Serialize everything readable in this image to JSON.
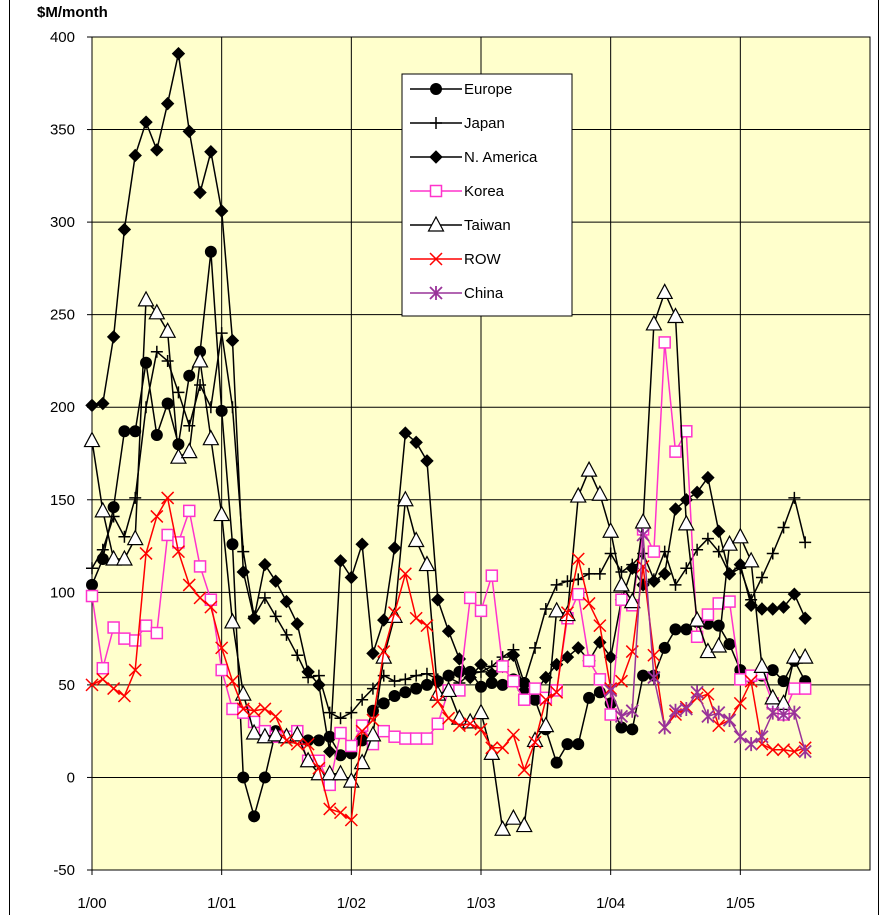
{
  "chart_data": {
    "type": "line",
    "ylabel_top": "$M/month",
    "xlim": [
      0,
      72
    ],
    "ylim": [
      -50,
      400
    ],
    "y_ticks": [
      -50,
      0,
      50,
      100,
      150,
      200,
      250,
      300,
      350,
      400
    ],
    "x_ticks": [
      {
        "pos": 0,
        "label": "1/00"
      },
      {
        "pos": 12,
        "label": "1/01"
      },
      {
        "pos": 24,
        "label": "1/02"
      },
      {
        "pos": 36,
        "label": "1/03"
      },
      {
        "pos": 48,
        "label": "1/04"
      },
      {
        "pos": 60,
        "label": "1/05"
      }
    ],
    "plot_bg": "#FFFFCC",
    "grid": true,
    "legend_position": "top-center",
    "series": [
      {
        "name": "Europe",
        "color": "#000000",
        "marker": "circle",
        "x": [
          0,
          1,
          2,
          3,
          4,
          5,
          6,
          7,
          8,
          9,
          10,
          11,
          12,
          13,
          14,
          15,
          16,
          17,
          18,
          19,
          20,
          21,
          22,
          23,
          24,
          25,
          26,
          27,
          28,
          29,
          30,
          31,
          32,
          33,
          34,
          35,
          36,
          37,
          38,
          39,
          40,
          41,
          42,
          43,
          44,
          45,
          46,
          47,
          48,
          49,
          50,
          51,
          52,
          53,
          54,
          55,
          56,
          57,
          58,
          59,
          60,
          61,
          62,
          63,
          64,
          65,
          66
        ],
        "y": [
          104,
          118,
          146,
          187,
          187,
          224,
          185,
          202,
          180,
          217,
          230,
          284,
          198,
          126,
          0,
          -21,
          0,
          25,
          22,
          23,
          20,
          20,
          22,
          12,
          13,
          20,
          36,
          40,
          44,
          46,
          48,
          50,
          52,
          55,
          57,
          57,
          49,
          51,
          50,
          53,
          51,
          42,
          26,
          8,
          18,
          18,
          43,
          46,
          40,
          27,
          26,
          55,
          55,
          70,
          80,
          80,
          84,
          83,
          82,
          72,
          58,
          54,
          55,
          58,
          52,
          63,
          52
        ]
      },
      {
        "name": "Japan",
        "color": "#000000",
        "marker": "plus",
        "x": [
          0,
          1,
          2,
          3,
          4,
          5,
          6,
          7,
          8,
          9,
          10,
          11,
          12,
          13,
          14,
          15,
          16,
          17,
          18,
          19,
          20,
          21,
          22,
          23,
          24,
          25,
          26,
          27,
          28,
          29,
          30,
          31,
          32,
          33,
          34,
          35,
          36,
          37,
          38,
          39,
          40,
          41,
          42,
          43,
          44,
          45,
          46,
          47,
          48,
          49,
          50,
          51,
          52,
          53,
          54,
          55,
          56,
          57,
          58,
          59,
          60,
          61,
          62,
          63,
          64,
          65,
          66
        ],
        "y": [
          113,
          123,
          141,
          130,
          151,
          200,
          230,
          225,
          208,
          190,
          212,
          200,
          240,
          200,
          122,
          87,
          97,
          87,
          77,
          66,
          54,
          55,
          35,
          32,
          35,
          42,
          48,
          55,
          52,
          53,
          55,
          56,
          53,
          54,
          51,
          56,
          57,
          60,
          65,
          69,
          51,
          70,
          91,
          104,
          106,
          107,
          110,
          110,
          121,
          111,
          115,
          121,
          107,
          122,
          104,
          113,
          123,
          129,
          122,
          110,
          113,
          96,
          108,
          121,
          135,
          151,
          127
        ]
      },
      {
        "name": "N. America",
        "color": "#000000",
        "marker": "diamond",
        "x": [
          0,
          1,
          2,
          3,
          4,
          5,
          6,
          7,
          8,
          9,
          10,
          11,
          12,
          13,
          14,
          15,
          16,
          17,
          18,
          19,
          20,
          21,
          22,
          23,
          24,
          25,
          26,
          27,
          28,
          29,
          30,
          31,
          32,
          33,
          34,
          35,
          36,
          37,
          38,
          39,
          40,
          41,
          42,
          43,
          44,
          45,
          46,
          47,
          48,
          49,
          50,
          51,
          52,
          53,
          54,
          55,
          56,
          57,
          58,
          59,
          60,
          61,
          62,
          63,
          64,
          65,
          66
        ],
        "y": [
          201,
          202,
          238,
          296,
          336,
          354,
          339,
          364,
          391,
          349,
          316,
          338,
          306,
          236,
          111,
          86,
          115,
          106,
          95,
          83,
          57,
          50,
          14,
          117,
          108,
          126,
          67,
          85,
          124,
          186,
          181,
          171,
          96,
          79,
          64,
          54,
          61,
          56,
          60,
          66,
          47,
          46,
          54,
          61,
          65,
          70,
          63,
          73,
          65,
          96,
          113,
          104,
          106,
          110,
          145,
          150,
          154,
          162,
          133,
          110,
          115,
          93,
          91,
          91,
          92,
          99,
          86
        ]
      },
      {
        "name": "Korea",
        "color": "#FF33CC",
        "marker": "square-open",
        "x": [
          0,
          1,
          2,
          3,
          4,
          5,
          6,
          7,
          8,
          9,
          10,
          11,
          12,
          13,
          14,
          15,
          16,
          17,
          18,
          19,
          20,
          21,
          22,
          23,
          24,
          25,
          26,
          27,
          28,
          29,
          30,
          31,
          32,
          33,
          34,
          35,
          36,
          37,
          38,
          39,
          40,
          41,
          42,
          43,
          44,
          45,
          46,
          47,
          48,
          49,
          50,
          51,
          52,
          53,
          54,
          55,
          56,
          57,
          58,
          59,
          60,
          61,
          62,
          63,
          64,
          65,
          66
        ],
        "y": [
          98,
          59,
          81,
          75,
          74,
          82,
          78,
          131,
          127,
          144,
          114,
          96,
          58,
          37,
          35,
          30,
          25,
          22,
          22,
          25,
          9,
          9,
          -4,
          24,
          17,
          28,
          18,
          25,
          22,
          21,
          21,
          21,
          29,
          47,
          47,
          97,
          90,
          109,
          60,
          52,
          42,
          48,
          43,
          47,
          86,
          99,
          63,
          53,
          34,
          96,
          93,
          134,
          122,
          235,
          176,
          187,
          76,
          88,
          94,
          95,
          53,
          55,
          56,
          40,
          34,
          48,
          48
        ]
      },
      {
        "name": "Taiwan",
        "color": "#000000",
        "marker": "triangle-open",
        "x": [
          0,
          1,
          2,
          3,
          4,
          5,
          6,
          7,
          8,
          9,
          10,
          11,
          12,
          13,
          14,
          15,
          16,
          17,
          18,
          19,
          20,
          21,
          22,
          23,
          24,
          25,
          26,
          27,
          28,
          29,
          30,
          31,
          32,
          33,
          34,
          35,
          36,
          37,
          38,
          39,
          40,
          41,
          42,
          43,
          44,
          45,
          46,
          47,
          48,
          49,
          50,
          51,
          52,
          53,
          54,
          55,
          56,
          57,
          58,
          59,
          60,
          61,
          62,
          63,
          64,
          65,
          66
        ],
        "y": [
          182,
          144,
          118,
          118,
          129,
          258,
          251,
          241,
          173,
          176,
          225,
          183,
          142,
          84,
          45,
          24,
          22,
          23,
          22,
          23,
          9,
          2,
          2,
          2,
          -2,
          8,
          23,
          65,
          87,
          150,
          128,
          115,
          45,
          47,
          32,
          30,
          35,
          13,
          -28,
          -22,
          -26,
          20,
          28,
          90,
          88,
          152,
          166,
          153,
          133,
          104,
          95,
          138,
          245,
          262,
          249,
          137,
          85,
          68,
          71,
          126,
          130,
          117,
          60,
          43,
          40,
          65,
          65
        ]
      },
      {
        "name": "ROW",
        "color": "#FF0000",
        "marker": "x",
        "x": [
          0,
          1,
          2,
          3,
          4,
          5,
          6,
          7,
          8,
          9,
          10,
          11,
          12,
          13,
          14,
          15,
          16,
          17,
          18,
          19,
          20,
          21,
          22,
          23,
          24,
          25,
          26,
          27,
          28,
          29,
          30,
          31,
          32,
          33,
          34,
          35,
          36,
          37,
          38,
          39,
          40,
          41,
          42,
          43,
          44,
          45,
          46,
          47,
          48,
          49,
          50,
          51,
          52,
          53,
          54,
          55,
          56,
          57,
          58,
          59,
          60,
          61,
          62,
          63,
          64,
          65,
          66
        ],
        "y": [
          50,
          53,
          48,
          44,
          58,
          121,
          141,
          151,
          122,
          104,
          97,
          92,
          70,
          52,
          37,
          36,
          37,
          33,
          20,
          18,
          18,
          5,
          -17,
          -19,
          -23,
          25,
          31,
          68,
          89,
          110,
          86,
          82,
          41,
          32,
          28,
          29,
          26,
          16,
          16,
          23,
          4,
          19,
          42,
          46,
          89,
          118,
          94,
          82,
          48,
          52,
          68,
          114,
          66,
          27,
          34,
          38,
          43,
          45,
          28,
          31,
          40,
          52,
          18,
          15,
          15,
          14,
          16
        ]
      },
      {
        "name": "China",
        "color": "#993399",
        "marker": "asterisk",
        "x": [
          48,
          49,
          50,
          51,
          52,
          53,
          54,
          55,
          56,
          57,
          58,
          59,
          60,
          61,
          62,
          63,
          64,
          65,
          66
        ],
        "y": [
          47,
          33,
          36,
          131,
          54,
          27,
          36,
          37,
          46,
          33,
          35,
          31,
          22,
          18,
          22,
          35,
          34,
          35,
          14
        ]
      }
    ]
  }
}
